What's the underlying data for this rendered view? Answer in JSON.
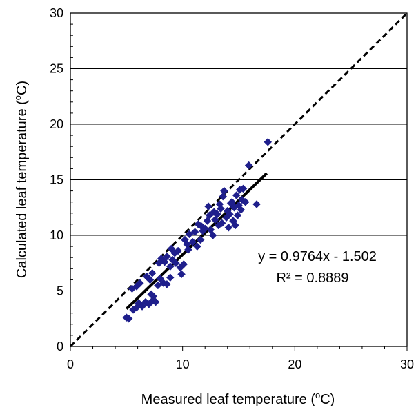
{
  "chart_data": {
    "type": "scatter",
    "title": "",
    "xlabel": "Measured leaf temperature (oC)",
    "xlabel_parts": {
      "before": "Measured leaf temperature (",
      "superscript": "o",
      "after": "C)"
    },
    "ylabel": "Calculated leaf temperature (oC)",
    "ylabel_parts": {
      "before": "Calculated leaf temperature (",
      "superscript": "o",
      "after": "C)"
    },
    "xlim": [
      0,
      30
    ],
    "ylim": [
      0,
      30
    ],
    "xticks": [
      0,
      10,
      20,
      30
    ],
    "yticks": [
      0,
      5,
      10,
      15,
      20,
      25,
      30
    ],
    "xtick_labels": [
      "0",
      "10",
      "20",
      "30"
    ],
    "ytick_labels": [
      "0",
      "5",
      "10",
      "15",
      "20",
      "25",
      "30"
    ],
    "grid": "horizontal",
    "legend": "none",
    "series": [
      {
        "marker": "diamond",
        "color": "#1F1F8C",
        "points": [
          [
            5.0,
            2.6
          ],
          [
            5.2,
            2.5
          ],
          [
            5.6,
            3.3
          ],
          [
            5.9,
            3.5
          ],
          [
            6.1,
            3.9
          ],
          [
            6.4,
            3.6
          ],
          [
            6.7,
            4.0
          ],
          [
            7.0,
            3.8
          ],
          [
            7.3,
            4.1
          ],
          [
            7.2,
            4.7
          ],
          [
            7.6,
            4.0
          ],
          [
            7.4,
            4.5
          ],
          [
            5.5,
            5.2
          ],
          [
            5.9,
            5.4
          ],
          [
            6.2,
            5.7
          ],
          [
            6.8,
            6.3
          ],
          [
            7.1,
            6.0
          ],
          [
            7.3,
            6.6
          ],
          [
            7.8,
            5.5
          ],
          [
            8.0,
            6.1
          ],
          [
            8.3,
            5.7
          ],
          [
            8.6,
            5.6
          ],
          [
            8.9,
            6.2
          ],
          [
            7.9,
            7.5
          ],
          [
            8.1,
            7.9
          ],
          [
            8.4,
            7.6
          ],
          [
            8.6,
            8.1
          ],
          [
            8.9,
            7.2
          ],
          [
            9.1,
            7.8
          ],
          [
            9.3,
            8.4
          ],
          [
            9.0,
            8.8
          ],
          [
            9.4,
            7.5
          ],
          [
            9.6,
            8.6
          ],
          [
            9.9,
            6.5
          ],
          [
            9.8,
            7.1
          ],
          [
            10.1,
            7.4
          ],
          [
            10.2,
            9.6
          ],
          [
            10.4,
            9.2
          ],
          [
            10.6,
            10.1
          ],
          [
            10.5,
            8.7
          ],
          [
            10.9,
            9.4
          ],
          [
            11.1,
            10.3
          ],
          [
            11.3,
            9.0
          ],
          [
            11.6,
            9.6
          ],
          [
            11.8,
            10.4
          ],
          [
            11.4,
            11.0
          ],
          [
            11.7,
            10.8
          ],
          [
            12.0,
            10.6
          ],
          [
            12.2,
            11.3
          ],
          [
            12.4,
            11.8
          ],
          [
            12.5,
            10.5
          ],
          [
            12.7,
            10.0
          ],
          [
            12.8,
            12.1
          ],
          [
            12.3,
            12.6
          ],
          [
            12.9,
            11.4
          ],
          [
            13.1,
            11.9
          ],
          [
            13.2,
            10.9
          ],
          [
            13.4,
            12.4
          ],
          [
            13.5,
            11.1
          ],
          [
            13.6,
            13.5
          ],
          [
            13.7,
            14.0
          ],
          [
            13.3,
            12.8
          ],
          [
            13.9,
            11.6
          ],
          [
            14.0,
            12.2
          ],
          [
            14.1,
            10.7
          ],
          [
            14.2,
            11.9
          ],
          [
            14.3,
            12.9
          ],
          [
            14.4,
            13.0
          ],
          [
            14.5,
            11.3
          ],
          [
            14.6,
            12.5
          ],
          [
            14.7,
            10.9
          ],
          [
            14.8,
            13.6
          ],
          [
            14.9,
            11.8
          ],
          [
            15.0,
            12.7
          ],
          [
            15.1,
            14.1
          ],
          [
            15.2,
            12.3
          ],
          [
            15.3,
            13.2
          ],
          [
            15.4,
            14.2
          ],
          [
            15.6,
            13.0
          ],
          [
            15.9,
            16.3
          ],
          [
            16.6,
            12.8
          ],
          [
            17.6,
            18.4
          ]
        ]
      }
    ],
    "reference_line": {
      "style": "dashed",
      "slope": 1,
      "intercept": 0,
      "x_range": [
        0,
        30
      ]
    },
    "trendline": {
      "style": "solid",
      "slope": 0.9764,
      "intercept": -1.502,
      "x_range": [
        5,
        17.5
      ]
    },
    "annotations": [
      "y = 0.9764x - 1.502",
      "R² = 0.8889"
    ]
  }
}
